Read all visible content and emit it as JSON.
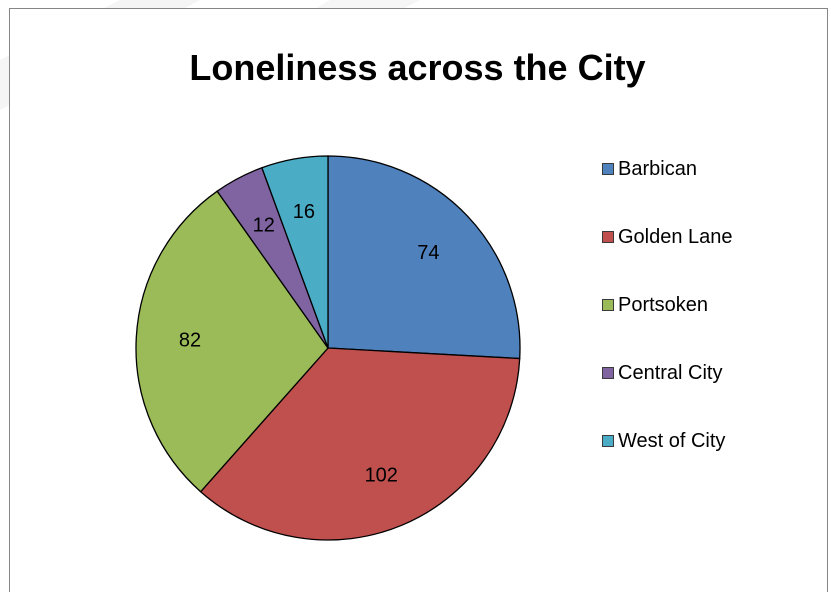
{
  "chart_data": {
    "type": "pie",
    "title": "Loneliness across the City",
    "categories": [
      "Barbican",
      "Golden Lane",
      "Portsoken",
      "Central City",
      "West of City"
    ],
    "values": [
      74,
      102,
      82,
      12,
      16
    ],
    "colors": [
      "#4f81bd",
      "#c0504d",
      "#9bbb59",
      "#8064a2",
      "#4bacc6"
    ],
    "start_angle_deg": 0,
    "direction": "clockwise",
    "data_labels": true,
    "legend_position": "right"
  }
}
